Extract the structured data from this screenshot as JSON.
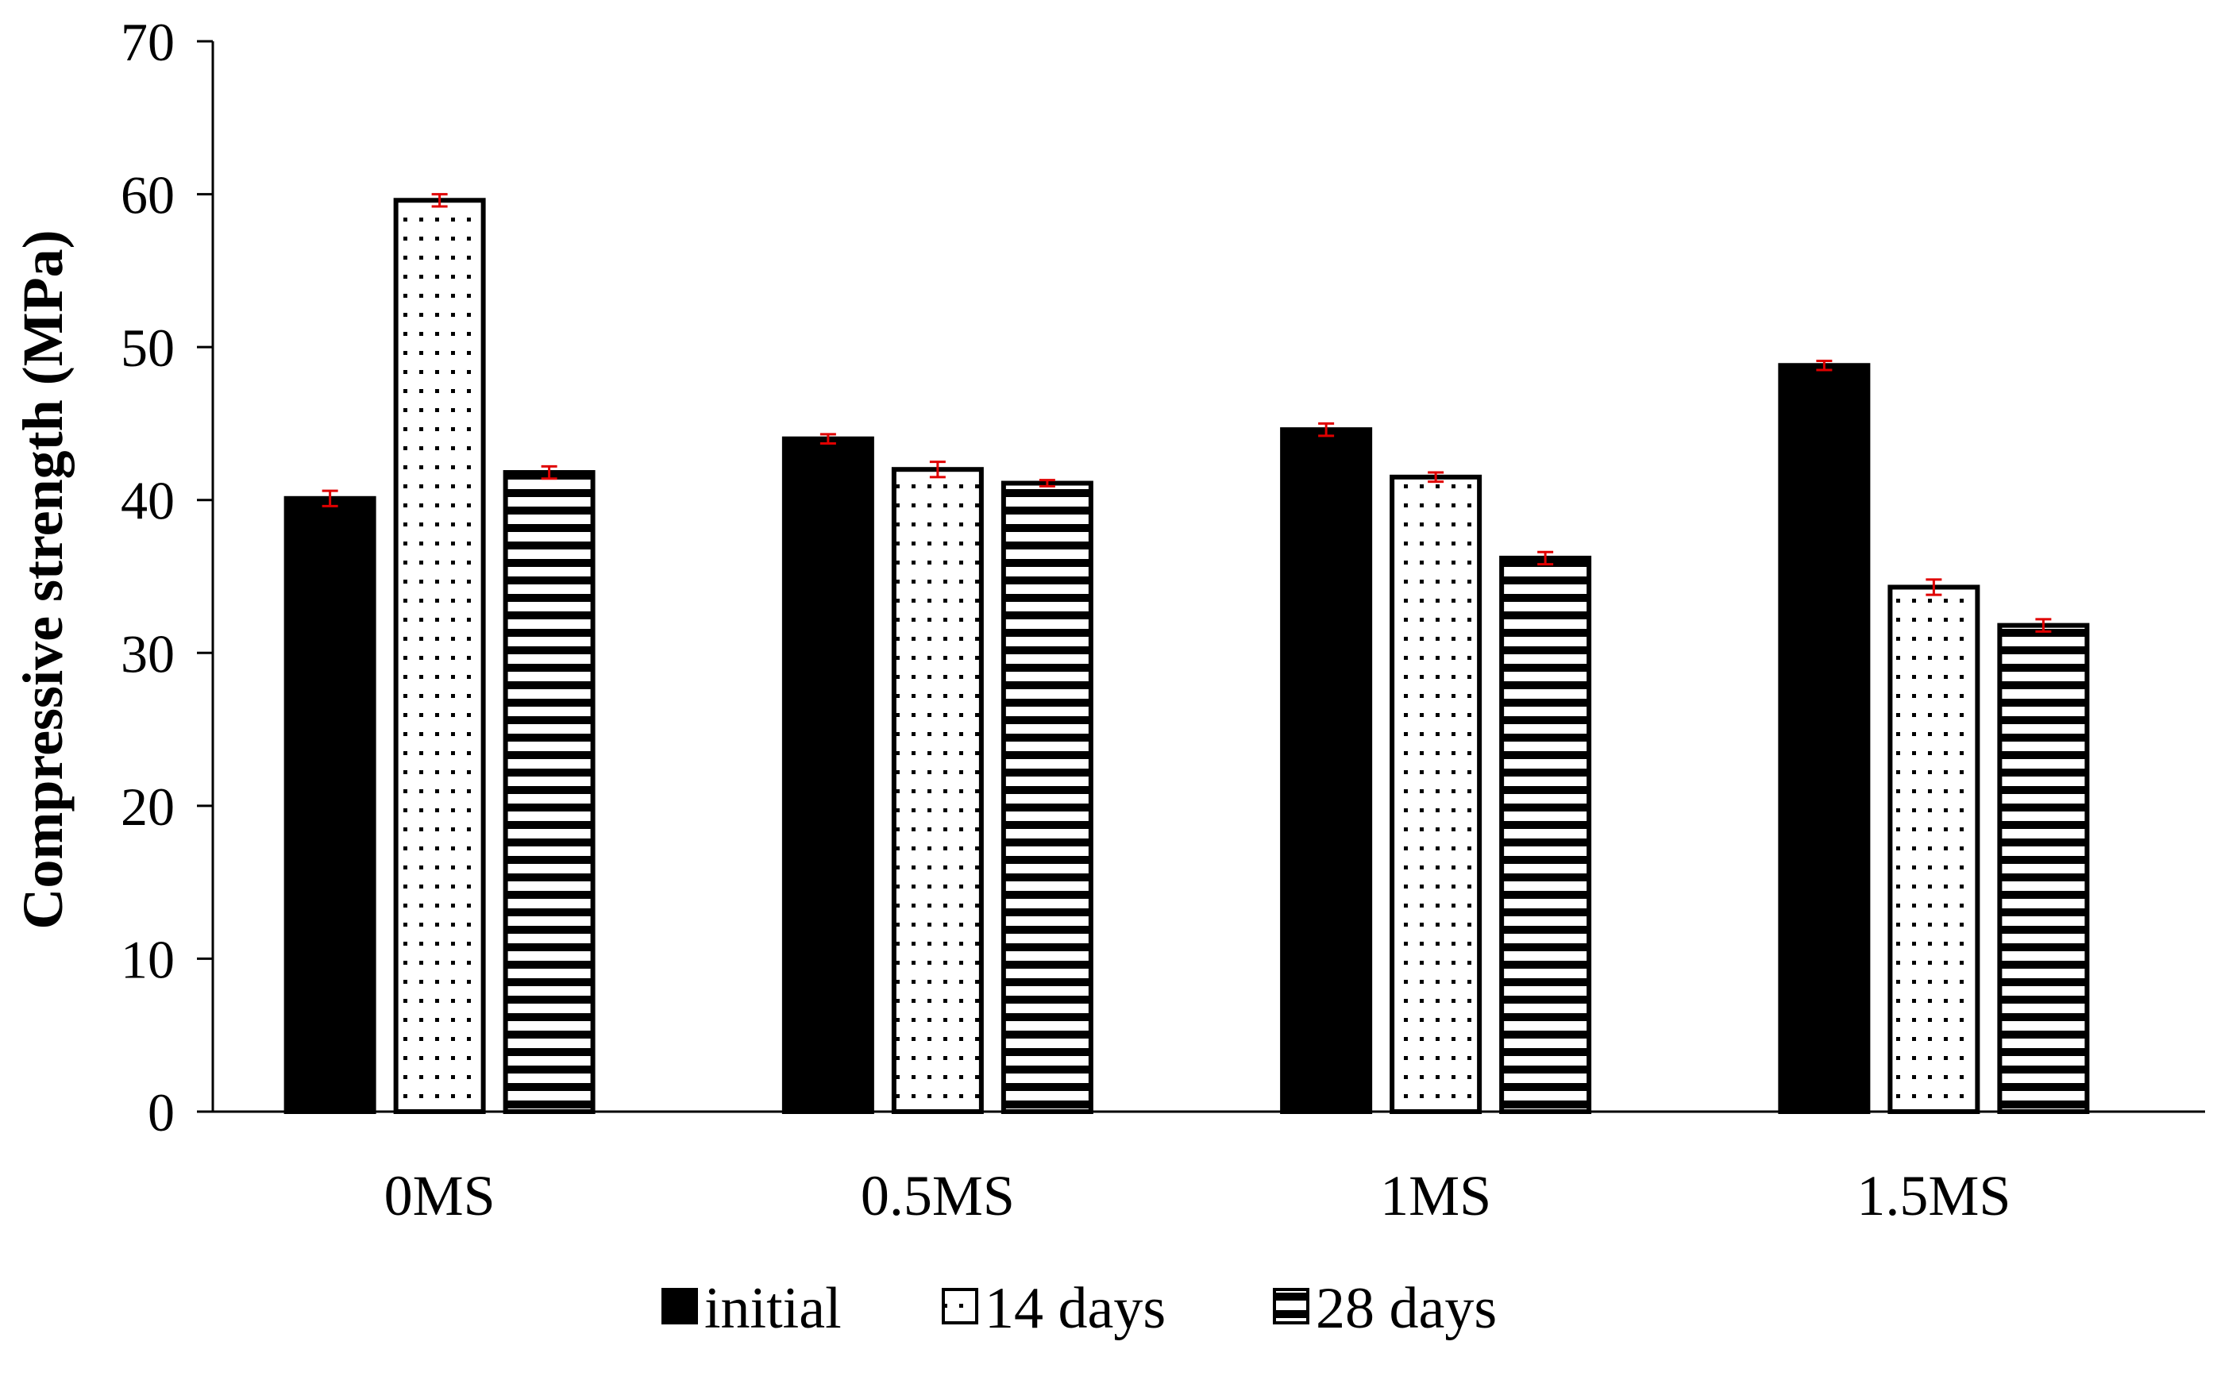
{
  "chart_data": {
    "type": "bar",
    "title": "",
    "xlabel": "",
    "ylabel": "Compressive strength (MPa)",
    "ylim": [
      0,
      70
    ],
    "yticks": [
      0,
      10,
      20,
      30,
      40,
      50,
      60,
      70
    ],
    "ytick_labels": [
      "0",
      "10",
      "20",
      "30",
      "40",
      "50",
      "60",
      "70"
    ],
    "grid": false,
    "legend_position": "bottom-center",
    "categories": [
      "0MS",
      "0.5MS",
      "1MS",
      "1.5MS"
    ],
    "series": [
      {
        "name": "initial",
        "pattern": "solid",
        "values": [
          40.1,
          44.0,
          44.6,
          48.8
        ],
        "errors": [
          0.5,
          0.3,
          0.4,
          0.3
        ]
      },
      {
        "name": "14 days",
        "pattern": "dots",
        "values": [
          59.6,
          42.0,
          41.5,
          34.3
        ],
        "errors": [
          0.4,
          0.5,
          0.3,
          0.5
        ]
      },
      {
        "name": "28 days",
        "pattern": "horizontal-stripes",
        "values": [
          41.8,
          41.1,
          36.2,
          31.8
        ],
        "errors": [
          0.4,
          0.2,
          0.4,
          0.4
        ]
      }
    ],
    "colors": {
      "bar_fill": "#000000",
      "bar_bg": "#ffffff",
      "error_bar": "#e00000",
      "axis": "#000000"
    }
  }
}
